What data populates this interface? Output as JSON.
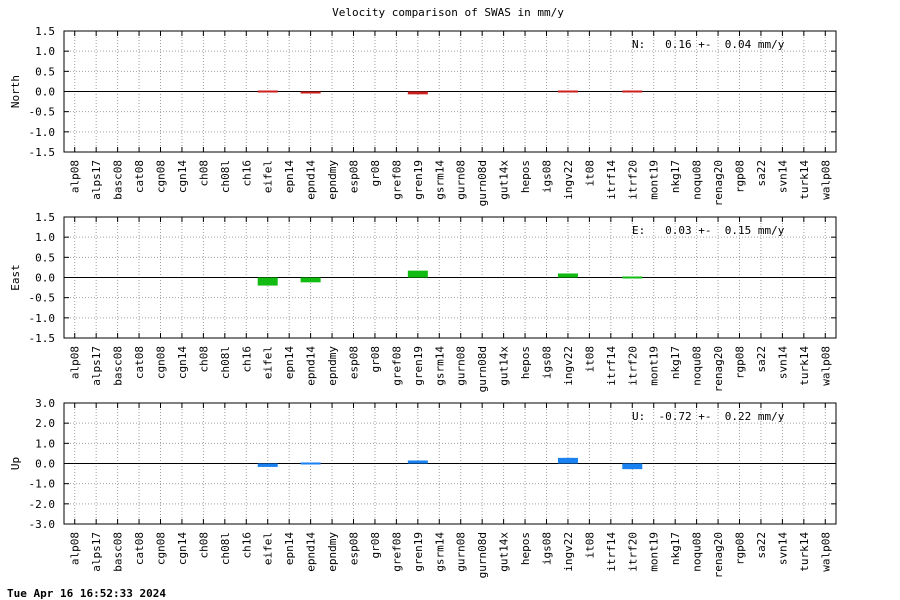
{
  "title": "Velocity comparison of SWAS in mm/y",
  "timestamp": "Tue Apr 16 16:52:33 2024",
  "stations": [
    "alp08",
    "alps17",
    "basc08",
    "cat08",
    "cgn08",
    "cgn14",
    "ch08",
    "ch08l",
    "ch16",
    "eifel",
    "epn14",
    "epnd14",
    "epndmy",
    "esp08",
    "gr08",
    "gref08",
    "gren19",
    "gsrm14",
    "gurn08",
    "gurn08d",
    "gut14x",
    "hepos",
    "igs08",
    "ingv22",
    "it08",
    "itrf14",
    "itrf20",
    "mont19",
    "nkg17",
    "noqu08",
    "renag20",
    "rgp08",
    "sa22",
    "svn14",
    "turk14",
    "walp08"
  ],
  "chart_data": [
    {
      "type": "bar",
      "ylabel": "North",
      "ylim": [
        -1.5,
        1.5
      ],
      "yticks": [
        "1.5",
        "1.0",
        "0.5",
        "0.0",
        "-0.5",
        "-1.0",
        "-1.5"
      ],
      "grid": true,
      "color": "#cc1f1f",
      "annotation": "N:   0.16 +-  0.04 mm/y",
      "values": {
        "eifel": 0.02,
        "epnd14": -0.05,
        "gren19": -0.07,
        "ingv22": 0.01,
        "itrf20": 0.01
      }
    },
    {
      "type": "bar",
      "ylabel": "East",
      "ylim": [
        -1.5,
        1.5
      ],
      "yticks": [
        "1.5",
        "1.0",
        "0.5",
        "0.0",
        "-0.5",
        "-1.0",
        "-1.5"
      ],
      "grid": true,
      "color": "#11bb11",
      "annotation": "E:   0.03 +-  0.15 mm/y",
      "values": {
        "eifel": -0.2,
        "epnd14": -0.12,
        "gren19": 0.17,
        "ingv22": 0.1,
        "itrf20": -0.02
      }
    },
    {
      "type": "bar",
      "ylabel": "Up",
      "ylim": [
        -3,
        3
      ],
      "yticks": [
        "3.0",
        "2.0",
        "1.0",
        "0.0",
        "-1.0",
        "-2.0",
        "-3.0"
      ],
      "grid": true,
      "color": "#1a82f0",
      "annotation": "U:  -0.72 +-  0.22 mm/y",
      "values": {
        "eifel": -0.17,
        "epnd14": -0.05,
        "gren19": 0.15,
        "ingv22": 0.28,
        "itrf20": -0.28
      }
    }
  ]
}
